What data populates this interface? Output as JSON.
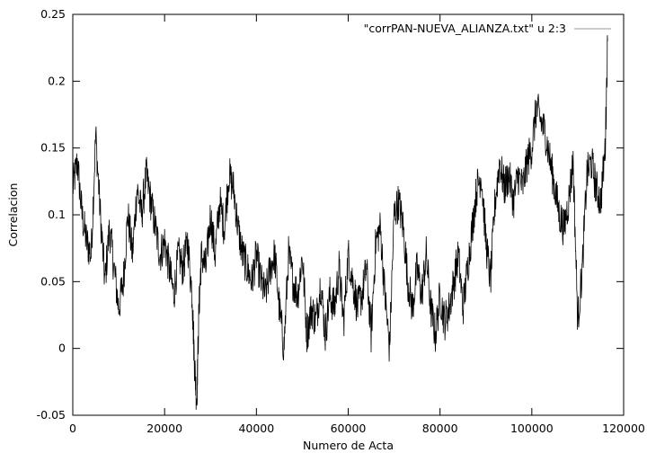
{
  "chart_data": {
    "type": "line",
    "title": "",
    "xlabel": "Numero de Acta",
    "ylabel": "Correlacion",
    "xlim": [
      0,
      120000
    ],
    "ylim": [
      -0.05,
      0.25
    ],
    "x_ticks": [
      0,
      20000,
      40000,
      60000,
      80000,
      100000,
      120000
    ],
    "x_tick_labels": [
      "0",
      "20000",
      "40000",
      "60000",
      "80000",
      "100000",
      "120000"
    ],
    "y_ticks": [
      -0.05,
      0,
      0.05,
      0.1,
      0.15,
      0.2,
      0.25
    ],
    "y_tick_labels": [
      "-0.05",
      "0",
      "0.05",
      "0.1",
      "0.15",
      "0.2",
      "0.25"
    ],
    "grid": false,
    "legend_position": "top-right",
    "series": [
      {
        "name": "\"corrPAN-NUEVA_ALIANZA.txt\" u 2:3",
        "color": "#000000",
        "x": [
          0,
          1000,
          2000,
          3000,
          4000,
          5000,
          6000,
          7000,
          8000,
          9000,
          10000,
          11000,
          12000,
          13000,
          14000,
          15000,
          16000,
          17000,
          18000,
          19000,
          20000,
          21000,
          22000,
          23000,
          24000,
          25000,
          26000,
          26500,
          27000,
          27500,
          28000,
          29000,
          30000,
          31000,
          32000,
          33000,
          34000,
          35000,
          36000,
          37000,
          38000,
          39000,
          40000,
          41000,
          42000,
          43000,
          44000,
          45000,
          46000,
          47000,
          48000,
          49000,
          50000,
          51000,
          52000,
          53000,
          54000,
          55000,
          56000,
          57000,
          58000,
          59000,
          60000,
          61000,
          62000,
          63000,
          64000,
          65000,
          66000,
          67000,
          68000,
          69000,
          70000,
          71000,
          72000,
          73000,
          74000,
          75000,
          76000,
          77000,
          78000,
          79000,
          80000,
          81000,
          82000,
          83000,
          84000,
          85000,
          86000,
          87000,
          88000,
          89000,
          90000,
          91000,
          92000,
          93000,
          94000,
          95000,
          96000,
          97000,
          98000,
          99000,
          100000,
          101000,
          102000,
          103000,
          104000,
          105000,
          106000,
          107000,
          108000,
          109000,
          110000,
          111000,
          112000,
          113000,
          114000,
          115000,
          116000,
          116500
        ],
        "y": [
          0.12,
          0.14,
          0.1,
          0.08,
          0.07,
          0.16,
          0.1,
          0.05,
          0.09,
          0.06,
          0.03,
          0.05,
          0.1,
          0.07,
          0.12,
          0.1,
          0.13,
          0.11,
          0.09,
          0.07,
          0.08,
          0.06,
          0.04,
          0.07,
          0.06,
          0.08,
          0.04,
          -0.01,
          -0.04,
          0.03,
          0.07,
          0.06,
          0.1,
          0.07,
          0.11,
          0.09,
          0.13,
          0.12,
          0.09,
          0.07,
          0.06,
          0.05,
          0.07,
          0.05,
          0.04,
          0.06,
          0.07,
          0.03,
          0.0,
          0.07,
          0.05,
          0.04,
          0.07,
          0.01,
          0.03,
          0.02,
          0.05,
          0.01,
          0.04,
          0.03,
          0.06,
          0.02,
          0.07,
          0.05,
          0.03,
          0.04,
          0.06,
          0.01,
          0.08,
          0.09,
          0.04,
          0.0,
          0.1,
          0.11,
          0.09,
          0.05,
          0.03,
          0.06,
          0.04,
          0.07,
          0.03,
          0.01,
          0.04,
          0.02,
          0.03,
          0.05,
          0.07,
          0.03,
          0.06,
          0.09,
          0.12,
          0.13,
          0.08,
          0.05,
          0.11,
          0.14,
          0.12,
          0.13,
          0.11,
          0.13,
          0.12,
          0.14,
          0.15,
          0.18,
          0.17,
          0.16,
          0.14,
          0.12,
          0.1,
          0.09,
          0.11,
          0.14,
          0.02,
          0.06,
          0.13,
          0.14,
          0.12,
          0.11,
          0.15,
          0.23
        ]
      }
    ]
  }
}
